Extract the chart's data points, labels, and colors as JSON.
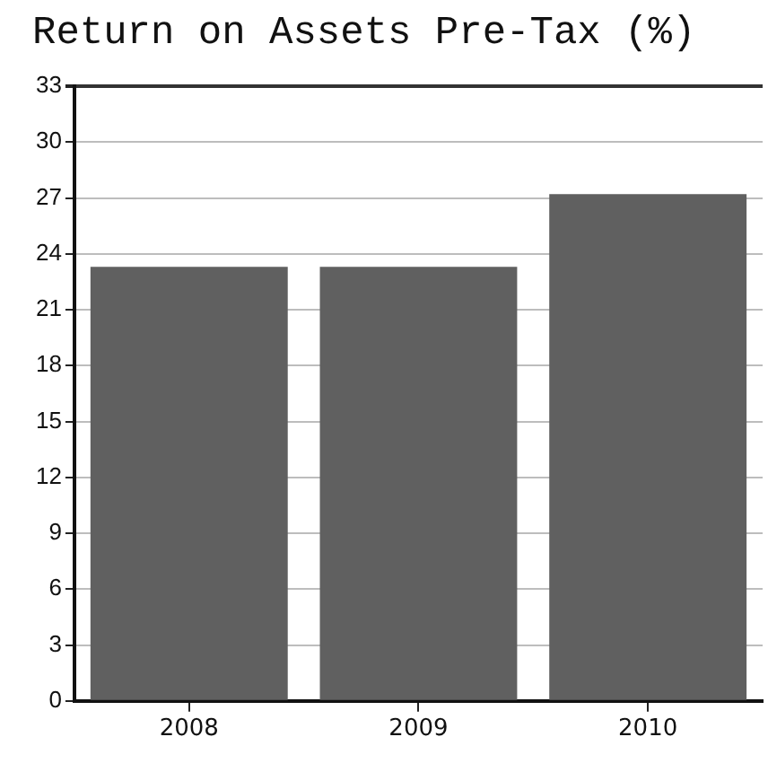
{
  "chart_data": {
    "type": "bar",
    "title": "Return on Assets Pre-Tax (%)",
    "categories": [
      "2008",
      "2009",
      "2010"
    ],
    "values": [
      23.3,
      23.3,
      27.2
    ],
    "color": "#606060",
    "ylim": [
      0,
      33
    ],
    "yticks": [
      0,
      3,
      6,
      9,
      12,
      15,
      18,
      21,
      24,
      27,
      30,
      33
    ],
    "grid": "y"
  }
}
